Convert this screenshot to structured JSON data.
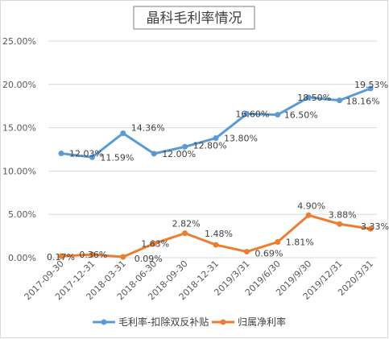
{
  "chart_data": {
    "type": "line",
    "title": "晶科毛利率情况",
    "xlabel": "",
    "ylabel": "",
    "categories": [
      "2017-09-30",
      "2017-12-31",
      "2018-03-31",
      "2018-06-30",
      "2018-09-30",
      "2018-12-31",
      "2019/3/31",
      "2019/6/30",
      "2019/9/30",
      "2019/12/31",
      "2020/3/31"
    ],
    "y_ticks": [
      "0.00%",
      "5.00%",
      "10.00%",
      "15.00%",
      "20.00%",
      "25.00%"
    ],
    "ylim": [
      0,
      25
    ],
    "grid": true,
    "legend_position": "bottom",
    "series": [
      {
        "name": "毛利率-扣除双反补贴",
        "color": "#5b9bd5",
        "values": [
          12.03,
          11.59,
          14.36,
          12.0,
          12.8,
          13.8,
          16.6,
          16.5,
          18.5,
          18.16,
          19.53
        ],
        "labels": [
          "12.03%",
          "11.59%",
          "14.36%",
          "12.00%",
          "12.80%",
          "13.80%",
          "16.60%",
          "16.50%",
          "18.50%",
          "18.16%",
          "19.53%"
        ]
      },
      {
        "name": "归属净利率",
        "color": "#ed7d31",
        "values": [
          0.17,
          0.36,
          0.09,
          1.63,
          2.82,
          1.48,
          0.69,
          1.81,
          4.9,
          3.88,
          3.33
        ],
        "labels": [
          "0.17%",
          "0.36%",
          "0.09%",
          "1.63%",
          "2.82%",
          "1.48%",
          "0.69%",
          "1.81%",
          "4.90%",
          "3.88%",
          "3.33%"
        ]
      }
    ]
  }
}
